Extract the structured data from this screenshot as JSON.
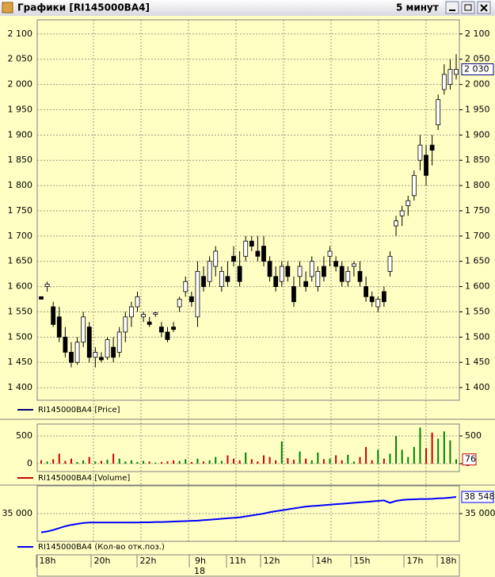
{
  "window": {
    "title": "Графики [RI145000BA4]",
    "period": "5 минут"
  },
  "x_axis": {
    "labels": [
      "18h",
      "20h",
      "22h",
      "9h",
      "11h",
      "12h",
      "14h",
      "15h",
      "17h",
      "18h"
    ],
    "date_label": "18"
  },
  "chart_data": [
    {
      "type": "candlestick",
      "name": "RI145000BA4 [Price]",
      "color": "#000080",
      "up_color": "#ffffff",
      "down_color": "#000000",
      "open": [
        1580,
        1600,
        1560,
        1540,
        1500,
        1470,
        1450,
        1490,
        1520,
        1460,
        1460,
        1460,
        1480,
        1470,
        1510,
        1540,
        1560,
        1540,
        1530,
        1545,
        1520,
        1510,
        1520,
        1560,
        1590,
        1580,
        1540,
        1620,
        1610,
        1640,
        1600,
        1620,
        1660,
        1640,
        1660,
        1690,
        1670,
        1680,
        1650,
        1620,
        1610,
        1640,
        1600,
        1620,
        1610,
        1620,
        1600,
        1640,
        1660,
        1650,
        1640,
        1610,
        1640,
        1630,
        1600,
        1580,
        1560,
        1590,
        1630,
        1720,
        1740,
        1760,
        1780,
        1850,
        1860,
        1880,
        1920,
        1990,
        2000,
        2020
      ],
      "high": [
        1580,
        1610,
        1570,
        1560,
        1520,
        1490,
        1500,
        1550,
        1530,
        1480,
        1470,
        1500,
        1500,
        1520,
        1550,
        1570,
        1590,
        1550,
        1540,
        1550,
        1530,
        1520,
        1530,
        1580,
        1620,
        1590,
        1650,
        1640,
        1660,
        1680,
        1640,
        1650,
        1680,
        1670,
        1700,
        1700,
        1700,
        1700,
        1660,
        1640,
        1650,
        1650,
        1620,
        1650,
        1630,
        1660,
        1640,
        1660,
        1680,
        1660,
        1650,
        1640,
        1650,
        1650,
        1620,
        1590,
        1580,
        1600,
        1670,
        1740,
        1760,
        1780,
        1830,
        1900,
        1880,
        1900,
        1980,
        2040,
        2050,
        2060
      ],
      "low": [
        1575,
        1590,
        1520,
        1490,
        1460,
        1440,
        1445,
        1480,
        1450,
        1440,
        1450,
        1455,
        1450,
        1460,
        1490,
        1520,
        1550,
        1530,
        1520,
        1540,
        1500,
        1490,
        1510,
        1550,
        1580,
        1560,
        1520,
        1590,
        1600,
        1620,
        1590,
        1600,
        1640,
        1600,
        1650,
        1670,
        1650,
        1640,
        1610,
        1590,
        1600,
        1610,
        1560,
        1600,
        1590,
        1610,
        1590,
        1610,
        1640,
        1630,
        1600,
        1600,
        1620,
        1600,
        1570,
        1560,
        1550,
        1560,
        1620,
        1700,
        1720,
        1740,
        1770,
        1830,
        1800,
        1840,
        1910,
        1980,
        1990,
        2010
      ],
      "close": [
        1575,
        1605,
        1525,
        1500,
        1470,
        1450,
        1490,
        1540,
        1460,
        1470,
        1455,
        1495,
        1460,
        1510,
        1540,
        1560,
        1580,
        1545,
        1525,
        1548,
        1510,
        1495,
        1515,
        1575,
        1610,
        1570,
        1630,
        1600,
        1650,
        1670,
        1630,
        1610,
        1650,
        1610,
        1690,
        1680,
        1660,
        1650,
        1620,
        1600,
        1640,
        1620,
        1570,
        1640,
        1600,
        1650,
        1630,
        1620,
        1670,
        1640,
        1610,
        1630,
        1645,
        1610,
        1580,
        1570,
        1575,
        1570,
        1660,
        1730,
        1750,
        1770,
        1820,
        1880,
        1820,
        1870,
        1970,
        2020,
        2030,
        2030
      ],
      "last_value": {
        "value": 2030,
        "label": "2 030"
      },
      "ylim": [
        1375,
        2128
      ],
      "yticks": [
        {
          "value": 1400,
          "label": "1 400"
        },
        {
          "value": 1450,
          "label": "1 450"
        },
        {
          "value": 1500,
          "label": "1 500"
        },
        {
          "value": 1550,
          "label": "1 550"
        },
        {
          "value": 1600,
          "label": "1 600"
        },
        {
          "value": 1650,
          "label": "1 650"
        },
        {
          "value": 1700,
          "label": "1 700"
        },
        {
          "value": 1750,
          "label": "1 750"
        },
        {
          "value": 1800,
          "label": "1 800"
        },
        {
          "value": 1850,
          "label": "1 850"
        },
        {
          "value": 1900,
          "label": "1 900"
        },
        {
          "value": 1950,
          "label": "1 950"
        },
        {
          "value": 2000,
          "label": "2 000"
        },
        {
          "value": 2050,
          "label": "2 050"
        },
        {
          "value": 2100,
          "label": "2 100"
        }
      ],
      "grid": true
    },
    {
      "type": "bar",
      "name": "RI145000BA4 [Volume]",
      "color": "#cc0000",
      "up_color": "#008000",
      "down_color": "#cc0000",
      "values": [
        60,
        40,
        80,
        180,
        50,
        90,
        30,
        60,
        120,
        40,
        50,
        70,
        180,
        90,
        40,
        60,
        30,
        50,
        40,
        20,
        30,
        40,
        60,
        50,
        80,
        30,
        90,
        40,
        60,
        120,
        50,
        150,
        90,
        60,
        200,
        80,
        40,
        150,
        120,
        60,
        400,
        100,
        70,
        220,
        90,
        60,
        200,
        80,
        90,
        150,
        60,
        160,
        40,
        120,
        300,
        60,
        250,
        90,
        180,
        500,
        250,
        120,
        300,
        650,
        280,
        560,
        450,
        580,
        420,
        76
      ],
      "ylim": [
        -143,
        714
      ],
      "yticks": [
        0,
        500
      ],
      "grid": true
    },
    {
      "type": "line",
      "name": "RI145000BA4 (Кол-во отк.поз.)",
      "color": "#0000ff",
      "values": [
        31000,
        31200,
        31500,
        31900,
        32300,
        32600,
        32800,
        33000,
        33100,
        33100,
        33100,
        33100,
        33100,
        33100,
        33100,
        33100,
        33100,
        33150,
        33150,
        33200,
        33200,
        33250,
        33300,
        33350,
        33400,
        33450,
        33500,
        33600,
        33700,
        33800,
        33900,
        34000,
        34100,
        34200,
        34400,
        34600,
        34800,
        35000,
        35300,
        35500,
        35700,
        35900,
        36100,
        36300,
        36500,
        36600,
        36700,
        36800,
        36900,
        37000,
        37100,
        37200,
        37300,
        37400,
        37500,
        37600,
        37700,
        37800,
        37300,
        37700,
        37900,
        38000,
        38050,
        38100,
        38100,
        38150,
        38250,
        38300,
        38400,
        38548
      ],
      "last_value": {
        "value": 38548,
        "label": "38 548"
      },
      "ylim": [
        29085,
        40915
      ],
      "yticks": [
        {
          "value": 35000,
          "label": "35 000"
        }
      ],
      "grid": true
    }
  ]
}
